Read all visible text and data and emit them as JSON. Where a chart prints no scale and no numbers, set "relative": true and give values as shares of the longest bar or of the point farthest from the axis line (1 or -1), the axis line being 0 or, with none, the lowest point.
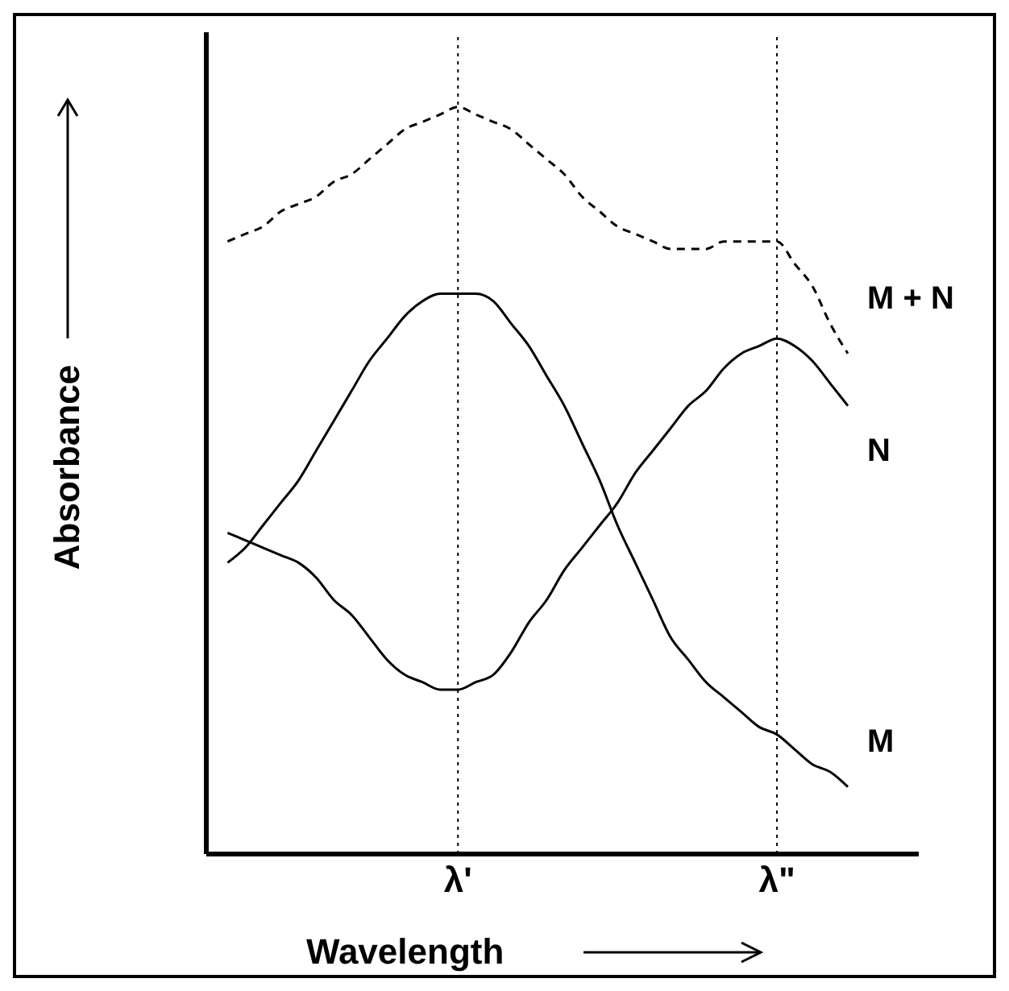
{
  "chart_data": {
    "type": "line",
    "xlabel": "Wavelength",
    "ylabel": "Absorbance",
    "relative": true,
    "categories": [
      null,
      null,
      null,
      null,
      null,
      null,
      null,
      null,
      null,
      null,
      null,
      null,
      null,
      "λ'",
      null,
      null,
      null,
      null,
      null,
      null,
      null,
      null,
      null,
      null,
      null,
      null,
      null,
      null,
      null,
      null,
      null,
      "λ\"",
      null,
      null,
      null,
      null
    ],
    "series": [
      {
        "name": "M + N",
        "color": "#000000",
        "line_style": "dashed",
        "values": [
          0.82,
          0.83,
          0.84,
          0.86,
          0.87,
          0.88,
          0.9,
          0.91,
          0.93,
          0.95,
          0.97,
          0.98,
          0.99,
          1.0,
          0.99,
          0.98,
          0.97,
          0.95,
          0.93,
          0.91,
          0.88,
          0.86,
          0.84,
          0.83,
          0.82,
          0.81,
          0.81,
          0.81,
          0.82,
          0.82,
          0.82,
          0.82,
          0.79,
          0.76,
          0.71,
          0.67
        ]
      },
      {
        "name": "N",
        "color": "#000000",
        "line_style": "solid",
        "values": [
          0.43,
          0.42,
          0.41,
          0.4,
          0.39,
          0.37,
          0.34,
          0.32,
          0.29,
          0.26,
          0.24,
          0.23,
          0.22,
          0.22,
          0.23,
          0.24,
          0.27,
          0.31,
          0.34,
          0.38,
          0.41,
          0.44,
          0.47,
          0.51,
          0.54,
          0.57,
          0.6,
          0.62,
          0.65,
          0.67,
          0.68,
          0.69,
          0.68,
          0.66,
          0.63,
          0.6
        ]
      },
      {
        "name": "M",
        "color": "#000000",
        "line_style": "solid",
        "values": [
          0.39,
          0.41,
          0.44,
          0.47,
          0.5,
          0.54,
          0.58,
          0.62,
          0.66,
          0.69,
          0.72,
          0.74,
          0.75,
          0.75,
          0.75,
          0.74,
          0.71,
          0.68,
          0.64,
          0.6,
          0.55,
          0.5,
          0.44,
          0.39,
          0.34,
          0.29,
          0.26,
          0.23,
          0.21,
          0.19,
          0.17,
          0.16,
          0.14,
          0.12,
          0.11,
          0.09
        ]
      }
    ],
    "ref_lines": [
      {
        "axis": "x",
        "value": "λ'",
        "line_style": "dotted"
      },
      {
        "axis": "x",
        "value": "λ\"",
        "line_style": "dotted"
      }
    ],
    "grid": false,
    "marker": "none"
  }
}
